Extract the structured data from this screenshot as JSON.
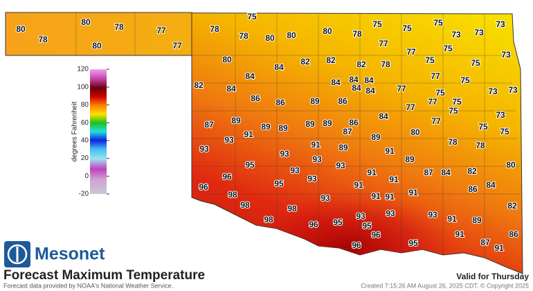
{
  "logo": "Mesonet",
  "title": "Forecast Maximum Temperature",
  "source": "Forecast data provided by NOAA's National Weather Service.",
  "valid": "Valid for Thursday",
  "created": "Created 7:15:26 AM August 26, 2025 CDT. © Copyright 2025",
  "colorbar": {
    "label": "degrees Fahrenheit",
    "range": [
      -20,
      120
    ],
    "ticks": [
      120,
      100,
      80,
      60,
      40,
      20,
      0,
      -20
    ]
  },
  "stations": [
    80,
    78,
    80,
    78,
    80,
    77,
    77,
    75,
    78,
    78,
    80,
    80,
    80,
    78,
    75,
    75,
    75,
    73,
    73,
    73,
    77,
    77,
    75,
    73,
    80,
    84,
    82,
    82,
    82,
    78,
    75,
    75,
    84,
    84,
    84,
    84,
    84,
    84,
    77,
    75,
    82,
    84,
    77,
    75,
    73,
    73,
    86,
    86,
    89,
    86,
    77,
    77,
    75,
    75,
    84,
    73,
    87,
    89,
    89,
    89,
    89,
    89,
    86,
    87,
    77,
    75,
    75,
    93,
    91,
    80,
    89,
    93,
    91,
    89,
    91,
    78,
    78,
    93,
    93,
    93,
    89,
    95,
    93,
    91,
    91,
    87,
    84,
    82,
    80,
    96,
    93,
    96,
    95,
    91,
    86,
    84,
    98,
    91,
    91,
    91,
    98,
    93,
    98,
    82,
    93,
    93,
    93,
    91,
    89,
    98,
    96,
    95,
    95,
    96,
    91,
    86,
    96,
    95,
    87,
    91
  ]
}
